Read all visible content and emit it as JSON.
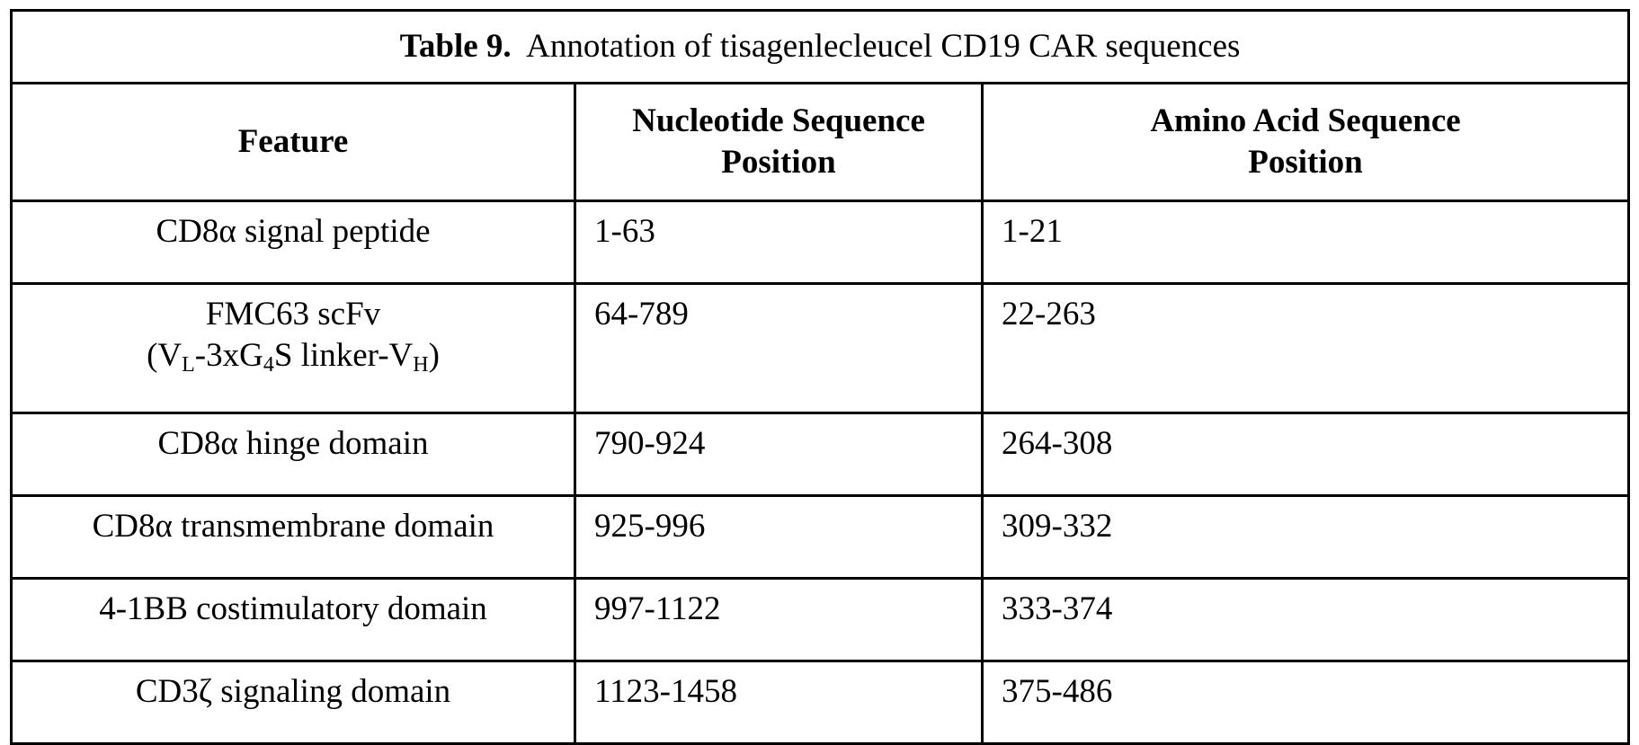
{
  "table": {
    "title_label": "Table 9.",
    "title_text": "Annotation of tisagenlecleucel CD19 CAR sequences",
    "headers": [
      "Feature",
      "Nucleotide Sequence Position",
      "Amino Acid Sequence Position"
    ],
    "rows": [
      {
        "feature": "CD8α signal peptide",
        "nucleotide": "1-63",
        "amino_acid": "1-21"
      },
      {
        "feature": "FMC63 scFv",
        "feature_line2": {
          "p1": "(V",
          "s1": "L",
          "p2": "-3xG",
          "s2": "4",
          "p3": "S linker-V",
          "s3": "H",
          "p4": ")"
        },
        "nucleotide": "64-789",
        "amino_acid": "22-263"
      },
      {
        "feature": "CD8α hinge domain",
        "nucleotide": "790-924",
        "amino_acid": "264-308"
      },
      {
        "feature": "CD8α transmembrane domain",
        "nucleotide": "925-996",
        "amino_acid": "309-332"
      },
      {
        "feature": "4-1BB costimulatory domain",
        "nucleotide": "997-1122",
        "amino_acid": "333-374"
      },
      {
        "feature": "CD3ζ signaling domain",
        "nucleotide": "1123-1458",
        "amino_acid": "375-486"
      }
    ]
  }
}
